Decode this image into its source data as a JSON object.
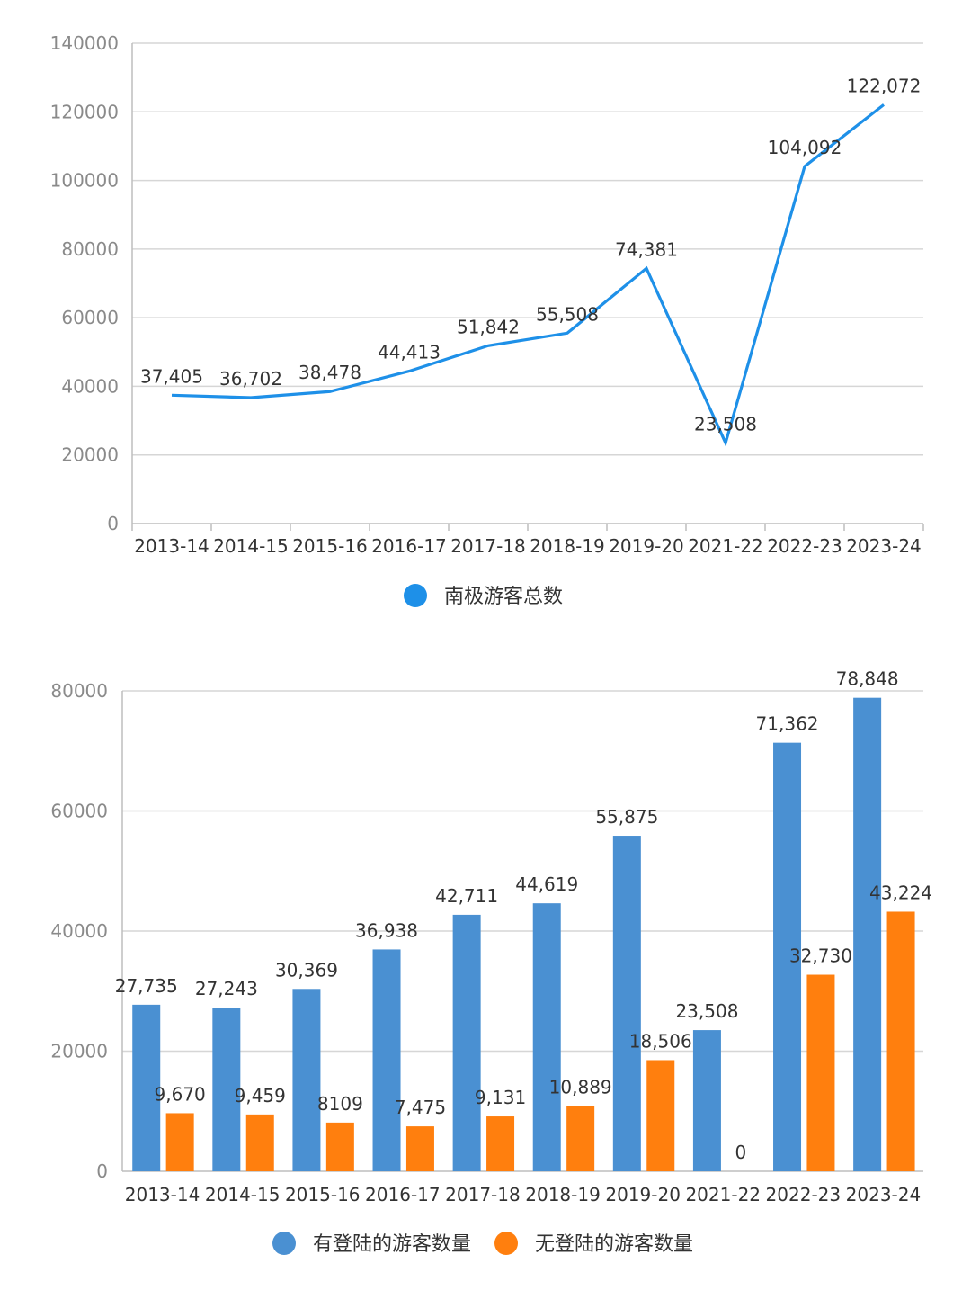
{
  "chart_data": [
    {
      "type": "line",
      "categories": [
        "2013-14",
        "2014-15",
        "2015-16",
        "2016-17",
        "2017-18",
        "2018-19",
        "2019-20",
        "2021-22",
        "2022-23",
        "2023-24"
      ],
      "series": [
        {
          "name": "南极游客总数",
          "values": [
            37405,
            36702,
            38478,
            44413,
            51842,
            55508,
            74381,
            23508,
            104092,
            122072
          ],
          "color": "#1e90e8"
        }
      ],
      "data_labels": [
        "37,405",
        "36,702",
        "38,478",
        "44,413",
        "51,842",
        "55,508",
        "74,381",
        "23,508",
        "104,092",
        "122,072"
      ],
      "y_ticks": [
        "0",
        "20000",
        "40000",
        "60000",
        "80000",
        "100000",
        "120000",
        "140000"
      ],
      "ylim": [
        0,
        140000
      ],
      "grid": true,
      "legend": "bottom"
    },
    {
      "type": "bar",
      "categories": [
        "2013-14",
        "2014-15",
        "2015-16",
        "2016-17",
        "2017-18",
        "2018-19",
        "2019-20",
        "2021-22",
        "2022-23",
        "2023-24"
      ],
      "series": [
        {
          "name": "有登陆的游客数量",
          "values": [
            27735,
            27243,
            30369,
            36938,
            42711,
            44619,
            55875,
            23508,
            71362,
            78848
          ],
          "color": "#4a90d2",
          "data_labels": [
            "27,735",
            "27,243",
            "30,369",
            "36,938",
            "42,711",
            "44,619",
            "55,875",
            "23,508",
            "71,362",
            "78,848"
          ]
        },
        {
          "name": "无登陆的游客数量",
          "values": [
            9670,
            9459,
            8109,
            7475,
            9131,
            10889,
            18506,
            0,
            32730,
            43224
          ],
          "color": "#ff7f0e",
          "data_labels": [
            "9,670",
            "9,459",
            "8109",
            "7,475",
            "9,131",
            "10,889",
            "18,506",
            "0",
            "32,730",
            "43,224"
          ]
        }
      ],
      "y_ticks": [
        "0",
        "20000",
        "40000",
        "60000",
        "80000"
      ],
      "ylim": [
        0,
        80000
      ],
      "grid": true,
      "legend": "bottom"
    }
  ]
}
